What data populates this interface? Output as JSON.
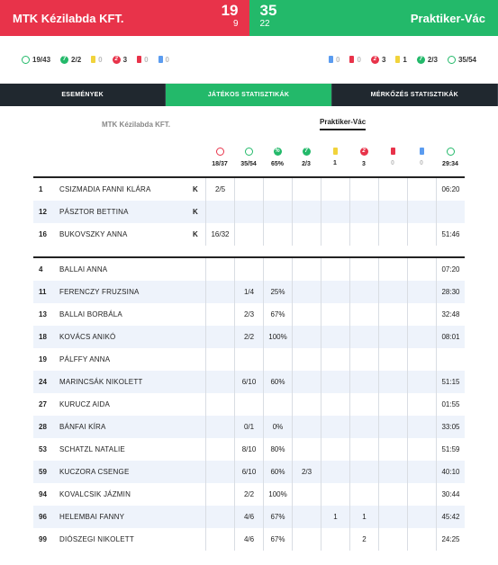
{
  "header": {
    "home_team": "MTK Kézilabda KFT.",
    "away_team": "Praktiker-Vác",
    "home_goals": "19",
    "home_half": "9",
    "away_goals": "35",
    "away_half": "22",
    "colors": {
      "home": "#e8334a",
      "away": "#23b96a"
    }
  },
  "summary": {
    "home": [
      {
        "icon": "shots-icon",
        "value": "19/43"
      },
      {
        "icon": "seven-meter-icon",
        "value": "2/2"
      },
      {
        "icon": "yellow-card-icon",
        "value": "0"
      },
      {
        "icon": "two-minute-icon",
        "value": "3"
      },
      {
        "icon": "red-card-icon",
        "value": "0"
      },
      {
        "icon": "blue-card-icon",
        "value": "0"
      }
    ],
    "away": [
      {
        "icon": "blue-card-icon",
        "value": "0"
      },
      {
        "icon": "red-card-icon",
        "value": "0"
      },
      {
        "icon": "two-minute-icon",
        "value": "3"
      },
      {
        "icon": "yellow-card-icon",
        "value": "1"
      },
      {
        "icon": "seven-meter-icon",
        "value": "2/3"
      },
      {
        "icon": "shots-icon",
        "value": "35/54"
      }
    ]
  },
  "tabs": [
    {
      "label": "ESEMÉNYEK"
    },
    {
      "label": "JÁTÉKOS STATISZTIKÁK"
    },
    {
      "label": "MÉRKŐZÉS STATISZTIKÁK"
    }
  ],
  "team_selector": {
    "home": "MTK Kézilabda KFT.",
    "away": "Praktiker-Vác"
  },
  "stats_header": [
    {
      "icon": "goals-icon",
      "value": "18/37"
    },
    {
      "icon": "shots-icon",
      "value": "35/54"
    },
    {
      "icon": "percent-icon",
      "value": "65%"
    },
    {
      "icon": "seven-meter-icon",
      "value": "2/3"
    },
    {
      "icon": "yellow-card-icon",
      "value": "1"
    },
    {
      "icon": "two-minute-icon",
      "value": "3"
    },
    {
      "icon": "red-card-icon",
      "value": "0"
    },
    {
      "icon": "blue-card-icon",
      "value": "0"
    },
    {
      "icon": "clock-icon",
      "value": "29:34"
    }
  ],
  "goalkeepers": [
    {
      "num": "1",
      "name": "CSIZMADIA FANNI KLÁRA",
      "k": "K",
      "cells": [
        "2/5",
        "",
        "",
        "",
        "",
        "",
        "",
        "",
        "06:20"
      ]
    },
    {
      "num": "12",
      "name": "PÁSZTOR BETTINA",
      "k": "K",
      "cells": [
        "",
        "",
        "",
        "",
        "",
        "",
        "",
        "",
        ""
      ]
    },
    {
      "num": "16",
      "name": "BUKOVSZKY ANNA",
      "k": "K",
      "cells": [
        "16/32",
        "",
        "",
        "",
        "",
        "",
        "",
        "",
        "51:46"
      ]
    }
  ],
  "players": [
    {
      "num": "4",
      "name": "BALLAI ANNA",
      "cells": [
        "",
        "",
        "",
        "",
        "",
        "",
        "",
        "",
        "07:20"
      ]
    },
    {
      "num": "11",
      "name": "FERENCZY FRUZSINA",
      "cells": [
        "",
        "1/4",
        "25%",
        "",
        "",
        "",
        "",
        "",
        "28:30"
      ]
    },
    {
      "num": "13",
      "name": "BALLAI BORBÁLA",
      "cells": [
        "",
        "2/3",
        "67%",
        "",
        "",
        "",
        "",
        "",
        "32:48"
      ]
    },
    {
      "num": "18",
      "name": "KOVÁCS ANIKÓ",
      "cells": [
        "",
        "2/2",
        "100%",
        "",
        "",
        "",
        "",
        "",
        "08:01"
      ]
    },
    {
      "num": "19",
      "name": "PÁLFFY ANNA",
      "cells": [
        "",
        "",
        "",
        "",
        "",
        "",
        "",
        "",
        ""
      ]
    },
    {
      "num": "24",
      "name": "MARINCSÁK NIKOLETT",
      "cells": [
        "",
        "6/10",
        "60%",
        "",
        "",
        "",
        "",
        "",
        "51:15"
      ]
    },
    {
      "num": "27",
      "name": "KURUCZ AIDA",
      "cells": [
        "",
        "",
        "",
        "",
        "",
        "",
        "",
        "",
        "01:55"
      ]
    },
    {
      "num": "28",
      "name": "BÁNFAI KÍRA",
      "cells": [
        "",
        "0/1",
        "0%",
        "",
        "",
        "",
        "",
        "",
        "33:05"
      ]
    },
    {
      "num": "53",
      "name": "SCHATZL NATALIE",
      "cells": [
        "",
        "8/10",
        "80%",
        "",
        "",
        "",
        "",
        "",
        "51:59"
      ]
    },
    {
      "num": "59",
      "name": "KUCZORA CSENGE",
      "cells": [
        "",
        "6/10",
        "60%",
        "2/3",
        "",
        "",
        "",
        "",
        "40:10"
      ]
    },
    {
      "num": "94",
      "name": "KOVALCSIK JÁZMIN",
      "cells": [
        "",
        "2/2",
        "100%",
        "",
        "",
        "",
        "",
        "",
        "30:44"
      ]
    },
    {
      "num": "96",
      "name": "HELEMBAI FANNY",
      "cells": [
        "",
        "4/6",
        "67%",
        "",
        "1",
        "1",
        "",
        "",
        "45:42"
      ]
    },
    {
      "num": "99",
      "name": "DIÓSZEGI NIKOLETT",
      "cells": [
        "",
        "4/6",
        "67%",
        "",
        "",
        "2",
        "",
        "",
        "24:25"
      ]
    }
  ]
}
